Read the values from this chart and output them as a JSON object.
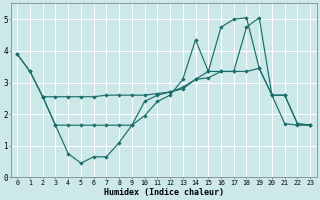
{
  "xlabel": "Humidex (Indice chaleur)",
  "bg_color": "#cce8e8",
  "grid_color": "#ffffff",
  "line_color": "#1a6e6a",
  "xlim": [
    -0.5,
    23.5
  ],
  "ylim": [
    0,
    5.5
  ],
  "xtick_labels": [
    "0",
    "1",
    "2",
    "3",
    "4",
    "5",
    "6",
    "7",
    "8",
    "9",
    "10",
    "11",
    "12",
    "13",
    "14",
    "15",
    "16",
    "17",
    "18",
    "19",
    "20",
    "21",
    "22",
    "23"
  ],
  "ytick_vals": [
    0,
    1,
    2,
    3,
    4,
    5
  ],
  "line1_x": [
    0,
    1,
    2,
    3,
    4,
    5,
    6,
    7,
    8,
    9,
    10,
    11,
    12,
    13,
    14,
    15,
    16,
    17,
    18,
    19,
    20,
    21,
    22,
    23
  ],
  "line1_y": [
    3.9,
    3.35,
    2.55,
    2.55,
    2.55,
    2.55,
    2.55,
    2.6,
    2.6,
    2.6,
    2.6,
    2.65,
    2.7,
    2.8,
    3.1,
    3.35,
    3.35,
    3.35,
    3.35,
    3.45,
    2.6,
    2.6,
    1.7,
    1.65
  ],
  "line2_x": [
    0,
    1,
    2,
    3,
    4,
    5,
    6,
    7,
    8,
    9,
    10,
    11,
    12,
    13,
    14,
    15,
    16,
    17,
    18,
    19,
    20,
    21,
    22,
    23
  ],
  "line2_y": [
    3.9,
    3.35,
    2.55,
    1.65,
    0.75,
    0.45,
    0.65,
    0.65,
    1.1,
    1.65,
    1.95,
    2.4,
    2.6,
    3.1,
    4.35,
    3.35,
    4.75,
    5.0,
    5.05,
    3.45,
    2.6,
    1.7,
    1.65,
    1.65
  ],
  "line3_x": [
    2,
    3,
    4,
    5,
    6,
    7,
    8,
    9,
    10,
    11,
    12,
    13,
    14,
    15,
    16,
    17,
    18,
    19,
    20,
    21,
    22,
    23
  ],
  "line3_y": [
    2.55,
    1.65,
    1.65,
    1.65,
    1.65,
    1.65,
    1.65,
    1.65,
    2.4,
    2.6,
    2.7,
    2.85,
    3.1,
    3.15,
    3.35,
    3.35,
    4.75,
    5.05,
    2.6,
    2.6,
    1.7,
    1.65
  ]
}
